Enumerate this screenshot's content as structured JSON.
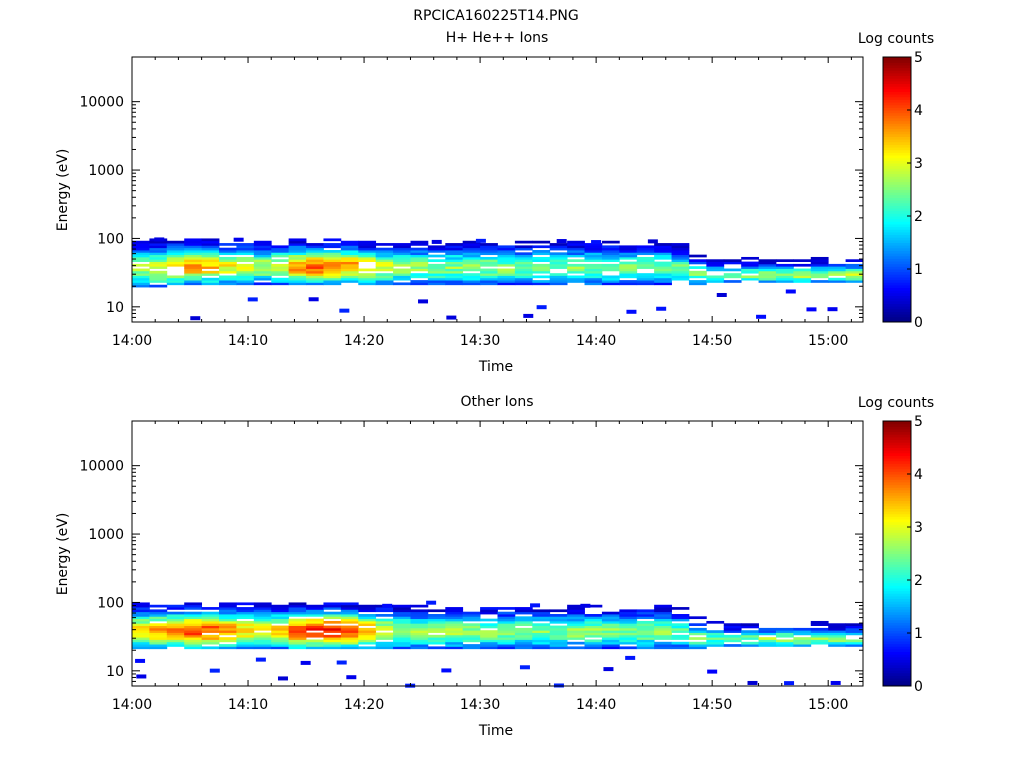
{
  "figure_title": "RPCICA160225T14.PNG",
  "colormap": "jet",
  "chart_data": [
    {
      "type": "heatmap",
      "title": "H+ He++ Ions",
      "xlabel": "Time",
      "ylabel": "Energy (eV)",
      "xlim": [
        "14:00",
        "15:03"
      ],
      "x_ticks": [
        "14:00",
        "14:10",
        "14:20",
        "14:30",
        "14:40",
        "14:50",
        "15:00"
      ],
      "y_scale": "log",
      "ylim": [
        6,
        45000
      ],
      "y_ticks": [
        10,
        100,
        1000,
        10000
      ],
      "y_tick_labels": [
        "10",
        "100",
        "1000",
        "10000"
      ],
      "colorbar": {
        "label": "Log counts",
        "range": [
          0,
          5
        ],
        "ticks": [
          "0",
          "1",
          "2",
          "3",
          "4",
          "5"
        ]
      },
      "band": {
        "time_steps_min": [
          0,
          2,
          4,
          6,
          8,
          10,
          12,
          14,
          16,
          18,
          20,
          22,
          24,
          26,
          28,
          30,
          32,
          34,
          36,
          38,
          40,
          42,
          44,
          46,
          48,
          50,
          52,
          54,
          56,
          58,
          60,
          62
        ],
        "peak_log_counts": [
          2.7,
          3.2,
          3.6,
          3.4,
          3.0,
          2.7,
          3.0,
          3.8,
          4.0,
          3.7,
          3.2,
          2.7,
          2.6,
          2.6,
          2.5,
          2.6,
          2.5,
          2.4,
          2.4,
          2.5,
          2.5,
          2.4,
          2.5,
          2.4,
          2.4,
          2.3,
          2.5,
          2.7,
          2.7,
          2.6,
          2.7,
          2.8
        ],
        "lower_eV": [
          20,
          20,
          22,
          22,
          22,
          22,
          22,
          22,
          22,
          24,
          22,
          22,
          22,
          22,
          22,
          22,
          22,
          22,
          22,
          22,
          22,
          22,
          22,
          22,
          22,
          24,
          24,
          24,
          24,
          24,
          24,
          24
        ],
        "upper_eV": [
          95,
          95,
          95,
          95,
          95,
          95,
          95,
          95,
          95,
          95,
          90,
          90,
          90,
          90,
          90,
          90,
          90,
          90,
          90,
          90,
          90,
          90,
          90,
          90,
          60,
          50,
          50,
          50,
          50,
          50,
          50,
          50
        ]
      }
    },
    {
      "type": "heatmap",
      "title": "Other Ions",
      "xlabel": "Time",
      "ylabel": "Energy (eV)",
      "xlim": [
        "14:00",
        "15:03"
      ],
      "x_ticks": [
        "14:00",
        "14:10",
        "14:20",
        "14:30",
        "14:40",
        "14:50",
        "15:00"
      ],
      "y_scale": "log",
      "ylim": [
        6,
        45000
      ],
      "y_ticks": [
        10,
        100,
        1000,
        10000
      ],
      "y_tick_labels": [
        "10",
        "100",
        "1000",
        "10000"
      ],
      "colorbar": {
        "label": "Log counts",
        "range": [
          0,
          5
        ],
        "ticks": [
          "0",
          "1",
          "2",
          "3",
          "4",
          "5"
        ]
      },
      "band": {
        "time_steps_min": [
          0,
          2,
          4,
          6,
          8,
          10,
          12,
          14,
          16,
          18,
          20,
          22,
          24,
          26,
          28,
          30,
          32,
          34,
          36,
          38,
          40,
          42,
          44,
          46,
          48,
          50,
          52,
          54,
          56,
          58,
          60,
          62
        ],
        "peak_log_counts": [
          3.3,
          3.8,
          4.1,
          4.0,
          3.6,
          3.0,
          3.3,
          4.3,
          4.4,
          4.2,
          3.6,
          2.8,
          2.7,
          2.7,
          2.6,
          2.6,
          2.6,
          2.5,
          2.5,
          2.6,
          2.5,
          2.5,
          2.6,
          2.5,
          2.4,
          2.3,
          2.4,
          2.6,
          2.7,
          2.6,
          2.6,
          2.6
        ],
        "lower_eV": [
          22,
          22,
          22,
          22,
          22,
          22,
          22,
          22,
          22,
          22,
          22,
          22,
          22,
          22,
          22,
          22,
          22,
          22,
          22,
          22,
          22,
          22,
          22,
          22,
          22,
          24,
          24,
          24,
          24,
          24,
          24,
          24
        ],
        "upper_eV": [
          95,
          95,
          95,
          95,
          95,
          95,
          95,
          95,
          95,
          95,
          90,
          90,
          90,
          90,
          90,
          90,
          90,
          90,
          90,
          90,
          90,
          90,
          90,
          90,
          60,
          50,
          50,
          50,
          50,
          50,
          50,
          50
        ]
      }
    }
  ]
}
